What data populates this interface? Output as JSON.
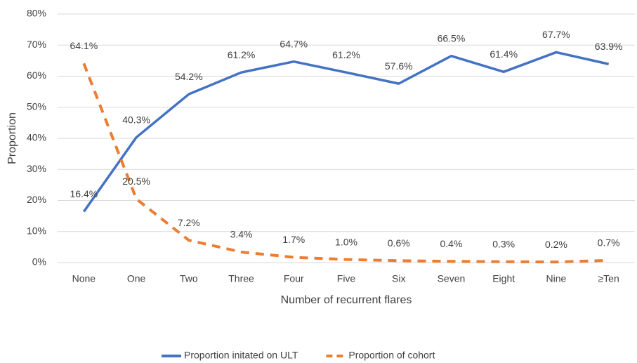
{
  "chart_data": {
    "type": "line",
    "x_label": "Number of recurrent flares",
    "y_label": "Proportion",
    "categories": [
      "None",
      "One",
      "Two",
      "Three",
      "Four",
      "Five",
      "Six",
      "Seven",
      "Eight",
      "Nine",
      "≥Ten"
    ],
    "series": [
      {
        "name": "Proportion initated on ULT",
        "color": "#4472c4",
        "dashed": false,
        "values": [
          16.4,
          40.3,
          54.2,
          61.2,
          64.7,
          61.2,
          57.6,
          66.5,
          61.4,
          67.7,
          63.9
        ],
        "value_labels": [
          "16.4%",
          "40.3%",
          "54.2%",
          "61.2%",
          "64.7%",
          "61.2%",
          "57.6%",
          "66.5%",
          "61.4%",
          "67.7%",
          "63.9%"
        ]
      },
      {
        "name": "Proportion of cohort",
        "color": "#ed7d31",
        "dashed": true,
        "values": [
          64.1,
          20.5,
          7.2,
          3.4,
          1.7,
          1.0,
          0.6,
          0.4,
          0.3,
          0.2,
          0.7
        ],
        "value_labels": [
          "64.1%",
          "20.5%",
          "7.2%",
          "3.4%",
          "1.7%",
          "1.0%",
          "0.6%",
          "0.4%",
          "0.3%",
          "0.2%",
          "0.7%"
        ]
      }
    ],
    "ylim": [
      0,
      80
    ],
    "yticks": [
      {
        "value": 0,
        "label": "0%"
      },
      {
        "value": 10,
        "label": "10%"
      },
      {
        "value": 20,
        "label": "20%"
      },
      {
        "value": 30,
        "label": "30%"
      },
      {
        "value": 40,
        "label": "40%"
      },
      {
        "value": 50,
        "label": "50%"
      },
      {
        "value": 60,
        "label": "60%"
      },
      {
        "value": 70,
        "label": "70%"
      },
      {
        "value": 80,
        "label": "80%"
      }
    ],
    "grid": true,
    "legend": "bottom"
  }
}
